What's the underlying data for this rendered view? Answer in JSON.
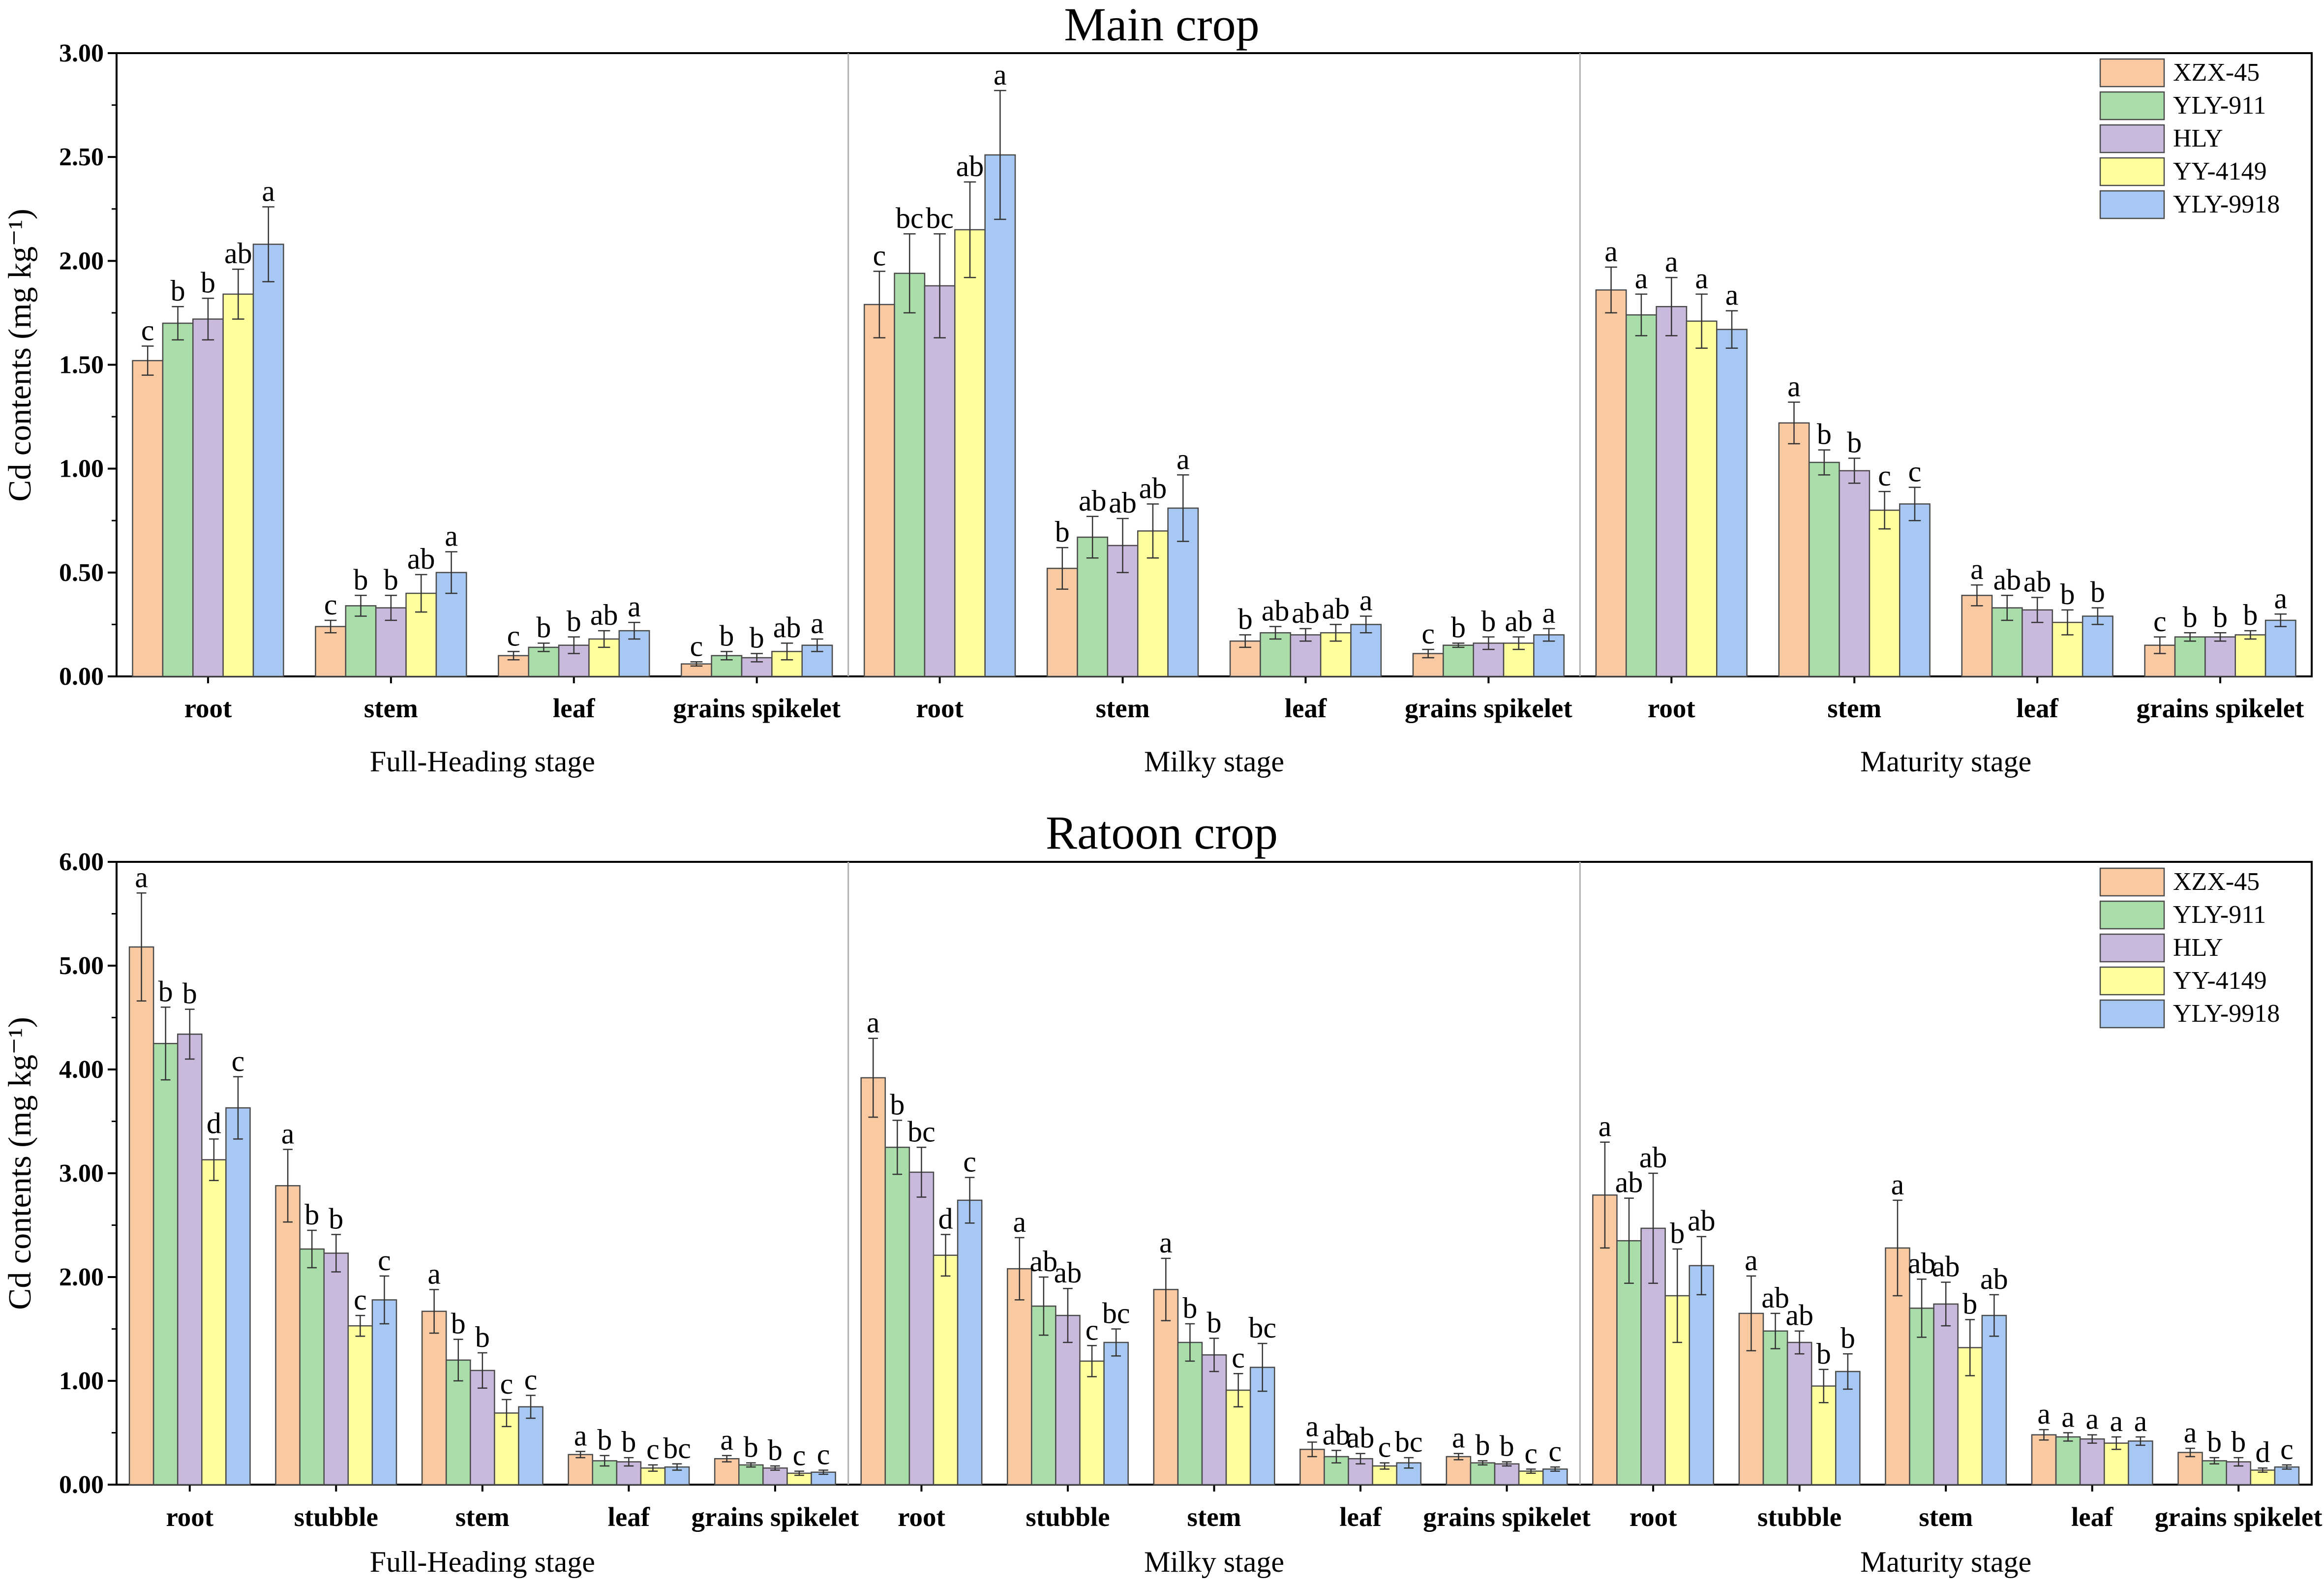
{
  "varieties": [
    "XZX-45",
    "YLY-911",
    "HLY",
    "YY-4149",
    "YLY-9918"
  ],
  "colors": [
    "#F9C9A1",
    "#A9DDA9",
    "#C9B9DC",
    "#FFFF9E",
    "#A6C8F2"
  ],
  "chart_data": [
    {
      "type": "bar",
      "title": "Main crop",
      "ylabel": "Cd contents (mg kg⁻¹)",
      "ylim": [
        0,
        3
      ],
      "yticks": [
        "0.00",
        "0.50",
        "1.00",
        "1.50",
        "2.00",
        "2.50",
        "3.00"
      ],
      "ytick_values": [
        0,
        0.5,
        1,
        1.5,
        2,
        2.5,
        3
      ],
      "legend": [
        "XZX-45",
        "YLY-911",
        "HLY",
        "YY-4149",
        "YLY-9918"
      ],
      "groups": [
        {
          "stage": "Full-Heading stage",
          "categories": [
            {
              "name": "root",
              "values": [
                1.52,
                1.7,
                1.72,
                1.84,
                2.08
              ],
              "errors": [
                0.07,
                0.08,
                0.1,
                0.12,
                0.18
              ],
              "letters": [
                "c",
                "b",
                "b",
                "ab",
                "a"
              ]
            },
            {
              "name": "stem",
              "values": [
                0.24,
                0.34,
                0.33,
                0.4,
                0.5
              ],
              "errors": [
                0.03,
                0.05,
                0.06,
                0.09,
                0.1
              ],
              "letters": [
                "c",
                "b",
                "b",
                "ab",
                "a"
              ]
            },
            {
              "name": "leaf",
              "values": [
                0.1,
                0.14,
                0.15,
                0.18,
                0.22
              ],
              "errors": [
                0.02,
                0.02,
                0.04,
                0.04,
                0.04
              ],
              "letters": [
                "c",
                "b",
                "b",
                "ab",
                "a"
              ]
            },
            {
              "name": "grains spikelet",
              "values": [
                0.06,
                0.1,
                0.09,
                0.12,
                0.15
              ],
              "errors": [
                0.01,
                0.02,
                0.02,
                0.04,
                0.03
              ],
              "letters": [
                "c",
                "b",
                "b",
                "ab",
                "a"
              ]
            }
          ]
        },
        {
          "stage": "Milky stage",
          "categories": [
            {
              "name": "root",
              "values": [
                1.79,
                1.94,
                1.88,
                2.15,
                2.51
              ],
              "errors": [
                0.16,
                0.19,
                0.25,
                0.23,
                0.31
              ],
              "letters": [
                "c",
                "bc",
                "bc",
                "ab",
                "a"
              ]
            },
            {
              "name": "stem",
              "values": [
                0.52,
                0.67,
                0.63,
                0.7,
                0.81
              ],
              "errors": [
                0.1,
                0.1,
                0.13,
                0.13,
                0.16
              ],
              "letters": [
                "b",
                "ab",
                "ab",
                "ab",
                "a"
              ]
            },
            {
              "name": "leaf",
              "values": [
                0.17,
                0.21,
                0.2,
                0.21,
                0.25
              ],
              "errors": [
                0.03,
                0.03,
                0.03,
                0.04,
                0.04
              ],
              "letters": [
                "b",
                "ab",
                "ab",
                "ab",
                "a"
              ]
            },
            {
              "name": "grains spikelet",
              "values": [
                0.11,
                0.15,
                0.16,
                0.16,
                0.2
              ],
              "errors": [
                0.02,
                0.01,
                0.03,
                0.03,
                0.03
              ],
              "letters": [
                "c",
                "b",
                "b",
                "ab",
                "a"
              ]
            }
          ]
        },
        {
          "stage": "Maturity stage",
          "categories": [
            {
              "name": "root",
              "values": [
                1.86,
                1.74,
                1.78,
                1.71,
                1.67
              ],
              "errors": [
                0.11,
                0.1,
                0.14,
                0.13,
                0.09
              ],
              "letters": [
                "a",
                "a",
                "a",
                "a",
                "a"
              ]
            },
            {
              "name": "stem",
              "values": [
                1.22,
                1.03,
                0.99,
                0.8,
                0.83
              ],
              "errors": [
                0.1,
                0.06,
                0.06,
                0.09,
                0.08
              ],
              "letters": [
                "a",
                "b",
                "b",
                "c",
                "c"
              ]
            },
            {
              "name": "leaf",
              "values": [
                0.39,
                0.33,
                0.32,
                0.26,
                0.29
              ],
              "errors": [
                0.05,
                0.06,
                0.06,
                0.06,
                0.04
              ],
              "letters": [
                "a",
                "ab",
                "ab",
                "b",
                "b"
              ]
            },
            {
              "name": "grains spikelet",
              "values": [
                0.15,
                0.19,
                0.19,
                0.2,
                0.27
              ],
              "errors": [
                0.04,
                0.02,
                0.02,
                0.02,
                0.03
              ],
              "letters": [
                "c",
                "b",
                "b",
                "b",
                "a"
              ]
            }
          ]
        }
      ]
    },
    {
      "type": "bar",
      "title": "Ratoon crop",
      "ylabel": "Cd contents (mg kg⁻¹)",
      "ylim": [
        0,
        6
      ],
      "yticks": [
        "0.00",
        "1.00",
        "2.00",
        "3.00",
        "4.00",
        "5.00",
        "6.00"
      ],
      "ytick_values": [
        0,
        1,
        2,
        3,
        4,
        5,
        6
      ],
      "legend": [
        "XZX-45",
        "YLY-911",
        "HLY",
        "YY-4149",
        "YLY-9918"
      ],
      "groups": [
        {
          "stage": "Full-Heading stage",
          "categories": [
            {
              "name": "root",
              "values": [
                5.18,
                4.25,
                4.34,
                3.13,
                3.63
              ],
              "errors": [
                0.52,
                0.35,
                0.24,
                0.2,
                0.3
              ],
              "letters": [
                "a",
                "b",
                "b",
                "d",
                "c"
              ]
            },
            {
              "name": "stubble",
              "values": [
                2.88,
                2.27,
                2.23,
                1.53,
                1.78
              ],
              "errors": [
                0.35,
                0.18,
                0.18,
                0.1,
                0.23
              ],
              "letters": [
                "a",
                "b",
                "b",
                "c",
                "c"
              ]
            },
            {
              "name": "stem",
              "values": [
                1.67,
                1.2,
                1.1,
                0.69,
                0.75
              ],
              "errors": [
                0.21,
                0.2,
                0.17,
                0.13,
                0.11
              ],
              "letters": [
                "a",
                "b",
                "b",
                "c",
                "c"
              ]
            },
            {
              "name": "leaf",
              "values": [
                0.29,
                0.23,
                0.22,
                0.16,
                0.17
              ],
              "errors": [
                0.03,
                0.05,
                0.04,
                0.03,
                0.03
              ],
              "letters": [
                "a",
                "b",
                "b",
                "c",
                "bc"
              ]
            },
            {
              "name": "grains spikelet",
              "values": [
                0.25,
                0.19,
                0.16,
                0.11,
                0.12
              ],
              "errors": [
                0.03,
                0.02,
                0.02,
                0.02,
                0.02
              ],
              "letters": [
                "a",
                "b",
                "b",
                "c",
                "c"
              ]
            }
          ]
        },
        {
          "stage": "Milky stage",
          "categories": [
            {
              "name": "root",
              "values": [
                3.92,
                3.25,
                3.01,
                2.21,
                2.74
              ],
              "errors": [
                0.38,
                0.26,
                0.24,
                0.2,
                0.22
              ],
              "letters": [
                "a",
                "b",
                "bc",
                "d",
                "c"
              ]
            },
            {
              "name": "stubble",
              "values": [
                2.08,
                1.72,
                1.63,
                1.19,
                1.37
              ],
              "errors": [
                0.3,
                0.28,
                0.26,
                0.15,
                0.13
              ],
              "letters": [
                "a",
                "ab",
                "ab",
                "c",
                "bc"
              ]
            },
            {
              "name": "stem",
              "values": [
                1.88,
                1.37,
                1.25,
                0.91,
                1.13
              ],
              "errors": [
                0.3,
                0.18,
                0.16,
                0.16,
                0.23
              ],
              "letters": [
                "a",
                "b",
                "b",
                "c",
                "bc"
              ]
            },
            {
              "name": "leaf",
              "values": [
                0.34,
                0.27,
                0.25,
                0.18,
                0.21
              ],
              "errors": [
                0.07,
                0.06,
                0.05,
                0.03,
                0.05
              ],
              "letters": [
                "a",
                "ab",
                "ab",
                "c",
                "bc"
              ]
            },
            {
              "name": "grains spikelet",
              "values": [
                0.27,
                0.21,
                0.2,
                0.13,
                0.15
              ],
              "errors": [
                0.03,
                0.02,
                0.02,
                0.02,
                0.02
              ],
              "letters": [
                "a",
                "b",
                "b",
                "c",
                "c"
              ]
            }
          ]
        },
        {
          "stage": "Maturity stage",
          "categories": [
            {
              "name": "root",
              "values": [
                2.79,
                2.35,
                2.47,
                1.82,
                2.11
              ],
              "errors": [
                0.51,
                0.41,
                0.53,
                0.45,
                0.28
              ],
              "letters": [
                "a",
                "ab",
                "ab",
                "b",
                "ab"
              ]
            },
            {
              "name": "stubble",
              "values": [
                1.65,
                1.48,
                1.37,
                0.95,
                1.09
              ],
              "errors": [
                0.36,
                0.17,
                0.11,
                0.16,
                0.17
              ],
              "letters": [
                "a",
                "ab",
                "ab",
                "b",
                "b"
              ]
            },
            {
              "name": "stem",
              "values": [
                2.28,
                1.7,
                1.74,
                1.32,
                1.63
              ],
              "errors": [
                0.46,
                0.28,
                0.21,
                0.27,
                0.2
              ],
              "letters": [
                "a",
                "ab",
                "ab",
                "b",
                "ab"
              ]
            },
            {
              "name": "leaf",
              "values": [
                0.48,
                0.46,
                0.44,
                0.4,
                0.42
              ],
              "errors": [
                0.05,
                0.04,
                0.04,
                0.06,
                0.04
              ],
              "letters": [
                "a",
                "a",
                "a",
                "a",
                "a"
              ]
            },
            {
              "name": "grains spikelet",
              "values": [
                0.31,
                0.23,
                0.22,
                0.14,
                0.17
              ],
              "errors": [
                0.04,
                0.03,
                0.04,
                0.02,
                0.02
              ],
              "letters": [
                "a",
                "b",
                "b",
                "d",
                "c"
              ]
            }
          ]
        }
      ]
    }
  ]
}
